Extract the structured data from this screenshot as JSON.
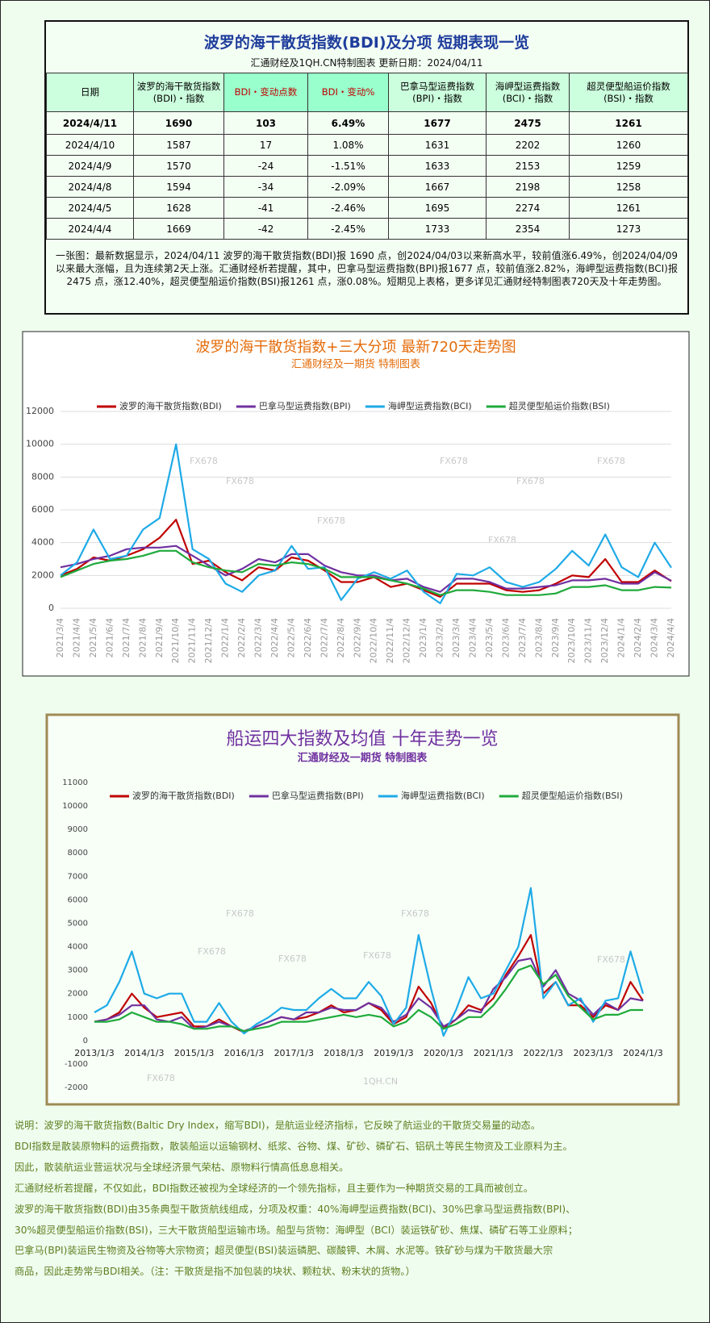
{
  "summary": {
    "title": "波罗的海干散货指数(BDI)及分项 短期表现一览",
    "subtitle": "汇通财经及1QH.CN特制图表     更新日期：2024/04/11",
    "headers": [
      [
        "日期"
      ],
      [
        "波罗的海干散货指数",
        "(BDI)・指数"
      ],
      [
        "BDI・变动点数"
      ],
      [
        "BDI・变动%"
      ],
      [
        "巴拿马型运费指数",
        "(BPI)・指数"
      ],
      [
        "海岬型运费指数",
        "(BCI)・指数"
      ],
      [
        "超灵便型船运价指数",
        "(BSI)・指数"
      ]
    ],
    "rows": [
      [
        "2024/4/11",
        "1690",
        "103",
        "6.49%",
        "1677",
        "2475",
        "1261"
      ],
      [
        "2024/4/10",
        "1587",
        "17",
        "1.08%",
        "1631",
        "2202",
        "1260"
      ],
      [
        "2024/4/9",
        "1570",
        "-24",
        "-1.51%",
        "1633",
        "2153",
        "1259"
      ],
      [
        "2024/4/8",
        "1594",
        "-34",
        "-2.09%",
        "1667",
        "2198",
        "1258"
      ],
      [
        "2024/4/5",
        "1628",
        "-41",
        "-2.46%",
        "1695",
        "2274",
        "1261"
      ],
      [
        "2024/4/4",
        "1669",
        "-42",
        "-2.45%",
        "1733",
        "2354",
        "1273"
      ]
    ],
    "note": "一张图：最新数据显示，2024/04/11 波罗的海干散货指数(BDI)报 1690 点，创2024/04/03以来新高水平，较前值涨6.49%，创2024/04/09以来最大涨幅，且为连续第2天上涨。汇通财经析若提醒，其中，巴拿马型运费指数(BPI)报1677 点，较前值涨2.82%，海岬型运费指数(BCI)报2475 点，涨12.40%，超灵便型船运价指数(BSI)报1261 点，涨0.08%。短期见上表格，更多详见汇通财经特制图表720天及十年走势图。"
  },
  "chart_data": [
    {
      "type": "line",
      "title": "波罗的海干散货指数+三大分项  最新720天走势图",
      "subtitle": "汇通财经及一期货  特制图表",
      "categories": [
        "2021/3/4",
        "2021/4/4",
        "2021/5/4",
        "2021/6/4",
        "2021/7/4",
        "2021/8/4",
        "2021/9/4",
        "2021/10/4",
        "2021/11/4",
        "2021/12/4",
        "2022/1/4",
        "2022/2/4",
        "2022/3/4",
        "2022/4/4",
        "2022/5/4",
        "2022/6/4",
        "2022/7/4",
        "2022/8/4",
        "2022/9/4",
        "2022/10/4",
        "2022/11/4",
        "2022/12/4",
        "2023/1/4",
        "2023/2/4",
        "2023/3/4",
        "2023/4/4",
        "2023/5/4",
        "2023/6/4",
        "2023/7/4",
        "2023/8/4",
        "2023/9/4",
        "2023/10/4",
        "2023/11/4",
        "2023/12/4",
        "2024/1/4",
        "2024/2/4",
        "2024/3/4",
        "2024/4/4"
      ],
      "series": [
        {
          "name": "波罗的海干散货指数(BDI)",
          "color": "#c00000",
          "values": [
            2000,
            2400,
            3100,
            2900,
            3200,
            3600,
            4300,
            5400,
            2700,
            2900,
            2200,
            1700,
            2500,
            2300,
            3100,
            2900,
            2300,
            1600,
            1600,
            1900,
            1300,
            1500,
            1100,
            700,
            1500,
            1500,
            1500,
            1100,
            1000,
            1100,
            1500,
            2000,
            1900,
            3000,
            1600,
            1600,
            2300,
            1650
          ]
        },
        {
          "name": "巴拿马型运费指数(BPI)",
          "color": "#7030a0",
          "values": [
            2500,
            2700,
            3000,
            3200,
            3600,
            3700,
            3700,
            3800,
            3200,
            2600,
            2000,
            2400,
            3000,
            2800,
            3300,
            3300,
            2600,
            2200,
            2000,
            2000,
            1700,
            1800,
            1300,
            1000,
            1800,
            1800,
            1600,
            1200,
            1200,
            1300,
            1400,
            1700,
            1700,
            1800,
            1500,
            1500,
            2200,
            1680
          ]
        },
        {
          "name": "海岬型运费指数(BCI)",
          "color": "#1eaae7",
          "values": [
            2000,
            2800,
            4800,
            3000,
            3200,
            4800,
            5500,
            10000,
            3600,
            3000,
            1500,
            1000,
            2000,
            2300,
            3800,
            2400,
            2500,
            500,
            1800,
            2200,
            1800,
            2300,
            1000,
            300,
            2100,
            2000,
            2500,
            1600,
            1300,
            1600,
            2400,
            3500,
            2600,
            4500,
            2500,
            1900,
            4000,
            2475
          ]
        },
        {
          "name": "超灵便型船运价指数(BSI)",
          "color": "#1faa3b",
          "values": [
            1900,
            2300,
            2700,
            2900,
            3000,
            3200,
            3500,
            3500,
            2800,
            2500,
            2300,
            2200,
            2700,
            2600,
            2800,
            2700,
            2400,
            1900,
            1900,
            1900,
            1700,
            1500,
            1200,
            800,
            1100,
            1100,
            1000,
            800,
            800,
            800,
            900,
            1300,
            1300,
            1400,
            1100,
            1100,
            1300,
            1261
          ]
        }
      ],
      "ylim": [
        0,
        12000
      ],
      "yticks": [
        0,
        2000,
        4000,
        6000,
        8000,
        10000,
        12000
      ],
      "grid": true,
      "watermarks": [
        "FX678",
        "FX678",
        "FX678",
        "FX678",
        "FX678",
        "FX678",
        "FX678"
      ]
    },
    {
      "type": "line",
      "title": "船运四大指数及均值 十年走势一览",
      "subtitle": "汇通财经及一期货 特制图表",
      "categories": [
        "2013/1/3",
        null,
        null,
        null,
        "2014/1/3",
        null,
        null,
        null,
        "2015/1/3",
        null,
        null,
        null,
        "2016/1/3",
        null,
        null,
        null,
        "2017/1/3",
        null,
        null,
        null,
        "2018/1/3",
        null,
        null,
        null,
        "2019/1/3",
        null,
        null,
        null,
        "2020/1/3",
        null,
        null,
        null,
        "2021/1/3",
        null,
        null,
        null,
        "2022/1/3",
        null,
        null,
        null,
        "2023/1/3",
        null,
        null,
        null,
        "2024/1/3"
      ],
      "series": [
        {
          "name": "波罗的海干散货指数(BDI)",
          "color": "#c00000",
          "values": [
            800,
            900,
            1200,
            2000,
            1400,
            1000,
            1100,
            1200,
            600,
            600,
            900,
            600,
            350,
            600,
            800,
            1000,
            900,
            1000,
            1200,
            1500,
            1200,
            1300,
            1600,
            1300,
            700,
            1000,
            2300,
            1600,
            500,
            900,
            1500,
            1300,
            1800,
            2800,
            3600,
            4500,
            2000,
            2500,
            1500,
            1500,
            1000,
            1500,
            1300,
            2500,
            1700
          ]
        },
        {
          "name": "巴拿马型运费指数(BPI)",
          "color": "#7030a0",
          "values": [
            800,
            900,
            1100,
            1500,
            1500,
            900,
            800,
            1000,
            500,
            600,
            800,
            600,
            400,
            600,
            800,
            1000,
            900,
            1200,
            1200,
            1400,
            1300,
            1300,
            1600,
            1400,
            800,
            1100,
            1800,
            1400,
            600,
            900,
            1300,
            1200,
            2200,
            2700,
            3400,
            3500,
            2300,
            3000,
            2000,
            1700,
            1100,
            1600,
            1300,
            1800,
            1700
          ]
        },
        {
          "name": "海岬型运费指数(BCI)",
          "color": "#1eaae7",
          "values": [
            1200,
            1500,
            2500,
            3800,
            2000,
            1800,
            2000,
            2000,
            800,
            800,
            1600,
            800,
            300,
            700,
            1000,
            1400,
            1300,
            1300,
            1800,
            2200,
            1800,
            1800,
            2500,
            1900,
            700,
            1400,
            4500,
            2200,
            200,
            1300,
            2700,
            1800,
            2000,
            3000,
            4000,
            6500,
            1800,
            2500,
            1500,
            1800,
            800,
            1700,
            1800,
            3800,
            2000
          ]
        },
        {
          "name": "超灵便型船运价指数(BSI)",
          "color": "#1faa3b",
          "values": [
            800,
            800,
            900,
            1200,
            1000,
            800,
            800,
            700,
            500,
            500,
            600,
            600,
            400,
            500,
            600,
            800,
            800,
            800,
            900,
            1000,
            1100,
            1000,
            1100,
            1000,
            600,
            800,
            1300,
            1000,
            500,
            700,
            1000,
            1000,
            1500,
            2200,
            3000,
            3200,
            2400,
            2800,
            1900,
            1400,
            900,
            1100,
            1100,
            1300,
            1300
          ]
        }
      ],
      "ylim": [
        -2000,
        11000
      ],
      "yticks": [
        -2000,
        -1000,
        0,
        1000,
        2000,
        3000,
        4000,
        5000,
        6000,
        7000,
        8000,
        9000,
        10000,
        11000
      ],
      "grid": false,
      "watermarks": [
        "FX678",
        "FX678",
        "FX678",
        "FX678",
        "FX678",
        "FX678",
        "FX678",
        "1QH.CN"
      ]
    }
  ],
  "explanation": [
    "说明：波罗的海干散货指数(Baltic Dry Index，缩写BDI)，是航运业经济指标，它反映了航运业的干散货交易量的动态。",
    "BDI指数是散装原物料的运费指数，散装船运以运输钢材、纸浆、谷物、煤、矿砂、磷矿石、铝矾土等民生物资及工业原料为主。",
    "因此，散装航运业营运状况与全球经济景气荣枯、原物料行情高低息息相关。",
    "汇通财经析若提醒，不仅如此，BDI指数还被视为全球经济的一个领先指标，且主要作为一种期货交易的工具而被创立。",
    "波罗的海干散货指数(BDI)由35条典型干散货航线组成，分项及权重：40%海岬型运费指数(BCI)、30%巴拿马型运费指数(BPI)、",
    "30%超灵便型船运价指数(BSI)，三大干散货船型运输市场。船型与货物：海岬型（BCI）装运铁矿砂、焦煤、磷矿石等工业原料；",
    "巴拿马(BPI)装运民生物资及谷物等大宗物资；超灵便型(BSI)装运磷肥、碳酸钾、木屑、水泥等。铁矿砂与煤为干散货最大宗",
    "商品，因此走势常与BDI相关。（注：干散货是指不加包装的块状、颗粒状、粉末状的货物。）"
  ]
}
